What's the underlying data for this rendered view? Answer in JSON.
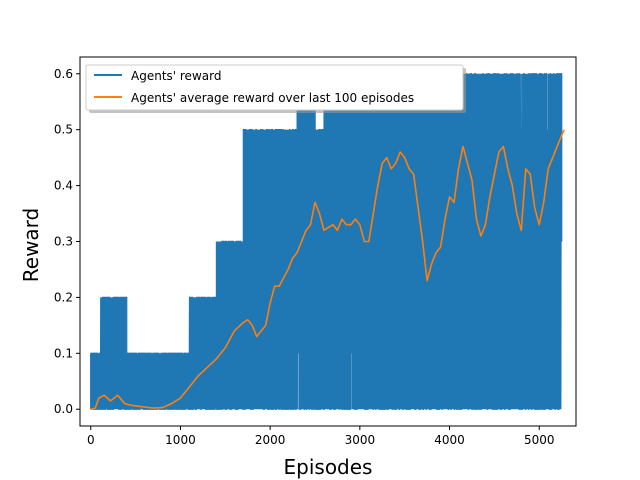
{
  "chart_data": {
    "type": "line",
    "xlabel": "Episodes",
    "ylabel": "Reward",
    "xlim": [
      -120,
      5410
    ],
    "ylim": [
      -0.03,
      0.63
    ],
    "xticks": [
      0,
      1000,
      2000,
      3000,
      4000,
      5000
    ],
    "yticks": [
      0.0,
      0.1,
      0.2,
      0.3,
      0.4,
      0.5,
      0.6
    ],
    "xtick_labels": [
      "0",
      "1000",
      "2000",
      "3000",
      "4000",
      "5000"
    ],
    "ytick_labels": [
      "0.0",
      "0.1",
      "0.2",
      "0.3",
      "0.4",
      "0.5",
      "0.6"
    ],
    "grid": false,
    "legend_position": "top-left",
    "series": [
      {
        "name": "Agents' reward",
        "color": "#1f77b4",
        "render": "noisy-band",
        "band": {
          "x": [
            0,
            80,
            110,
            400,
            800,
            1050,
            1100,
            1350,
            1400,
            1650,
            1700,
            1900,
            2000,
            2200,
            2300,
            2500,
            2600,
            3000,
            3200,
            3500,
            3800,
            4000,
            4200,
            4500,
            5000,
            5150,
            5250
          ],
          "low": [
            0,
            0,
            0,
            0,
            0,
            0,
            0,
            0,
            0,
            0,
            0,
            0,
            0,
            0,
            0,
            0,
            0,
            0,
            0,
            0,
            0,
            0,
            0,
            0,
            0,
            0,
            0.1
          ],
          "high": [
            0.1,
            0.1,
            0.2,
            0.1,
            0.1,
            0.1,
            0.2,
            0.2,
            0.3,
            0.3,
            0.5,
            0.5,
            0.5,
            0.5,
            0.6,
            0.5,
            0.6,
            0.6,
            0.6,
            0.6,
            0.6,
            0.6,
            0.6,
            0.6,
            0.6,
            0.6,
            0.6
          ]
        }
      },
      {
        "name": "Agents' average reward over last 100 episodes",
        "color": "#ff7f0e",
        "render": "line",
        "points": [
          [
            0,
            0.0
          ],
          [
            50,
            0.002
          ],
          [
            90,
            0.02
          ],
          [
            150,
            0.025
          ],
          [
            220,
            0.015
          ],
          [
            300,
            0.025
          ],
          [
            380,
            0.01
          ],
          [
            450,
            0.007
          ],
          [
            550,
            0.005
          ],
          [
            700,
            0.002
          ],
          [
            800,
            0.003
          ],
          [
            900,
            0.01
          ],
          [
            1000,
            0.02
          ],
          [
            1100,
            0.04
          ],
          [
            1200,
            0.06
          ],
          [
            1300,
            0.075
          ],
          [
            1400,
            0.09
          ],
          [
            1500,
            0.11
          ],
          [
            1600,
            0.14
          ],
          [
            1700,
            0.155
          ],
          [
            1750,
            0.16
          ],
          [
            1800,
            0.15
          ],
          [
            1850,
            0.13
          ],
          [
            1900,
            0.14
          ],
          [
            1950,
            0.15
          ],
          [
            2000,
            0.19
          ],
          [
            2050,
            0.22
          ],
          [
            2100,
            0.22
          ],
          [
            2200,
            0.25
          ],
          [
            2250,
            0.27
          ],
          [
            2300,
            0.28
          ],
          [
            2350,
            0.3
          ],
          [
            2400,
            0.32
          ],
          [
            2450,
            0.33
          ],
          [
            2500,
            0.37
          ],
          [
            2550,
            0.35
          ],
          [
            2600,
            0.32
          ],
          [
            2700,
            0.33
          ],
          [
            2750,
            0.32
          ],
          [
            2800,
            0.34
          ],
          [
            2850,
            0.33
          ],
          [
            2900,
            0.33
          ],
          [
            2950,
            0.34
          ],
          [
            3000,
            0.33
          ],
          [
            3050,
            0.3
          ],
          [
            3100,
            0.3
          ],
          [
            3150,
            0.35
          ],
          [
            3200,
            0.4
          ],
          [
            3250,
            0.44
          ],
          [
            3300,
            0.45
          ],
          [
            3350,
            0.43
          ],
          [
            3400,
            0.44
          ],
          [
            3450,
            0.46
          ],
          [
            3500,
            0.45
          ],
          [
            3550,
            0.43
          ],
          [
            3600,
            0.42
          ],
          [
            3650,
            0.36
          ],
          [
            3700,
            0.3
          ],
          [
            3750,
            0.23
          ],
          [
            3800,
            0.26
          ],
          [
            3850,
            0.28
          ],
          [
            3900,
            0.29
          ],
          [
            3950,
            0.34
          ],
          [
            4000,
            0.38
          ],
          [
            4050,
            0.37
          ],
          [
            4100,
            0.43
          ],
          [
            4150,
            0.47
          ],
          [
            4200,
            0.44
          ],
          [
            4250,
            0.41
          ],
          [
            4300,
            0.34
          ],
          [
            4350,
            0.31
          ],
          [
            4400,
            0.33
          ],
          [
            4450,
            0.38
          ],
          [
            4500,
            0.42
          ],
          [
            4550,
            0.46
          ],
          [
            4600,
            0.47
          ],
          [
            4650,
            0.43
          ],
          [
            4700,
            0.4
          ],
          [
            4750,
            0.35
          ],
          [
            4800,
            0.32
          ],
          [
            4850,
            0.43
          ],
          [
            4900,
            0.42
          ],
          [
            4950,
            0.36
          ],
          [
            5000,
            0.33
          ],
          [
            5050,
            0.37
          ],
          [
            5100,
            0.43
          ],
          [
            5150,
            0.45
          ],
          [
            5200,
            0.47
          ],
          [
            5250,
            0.49
          ],
          [
            5280,
            0.5
          ]
        ]
      }
    ]
  }
}
